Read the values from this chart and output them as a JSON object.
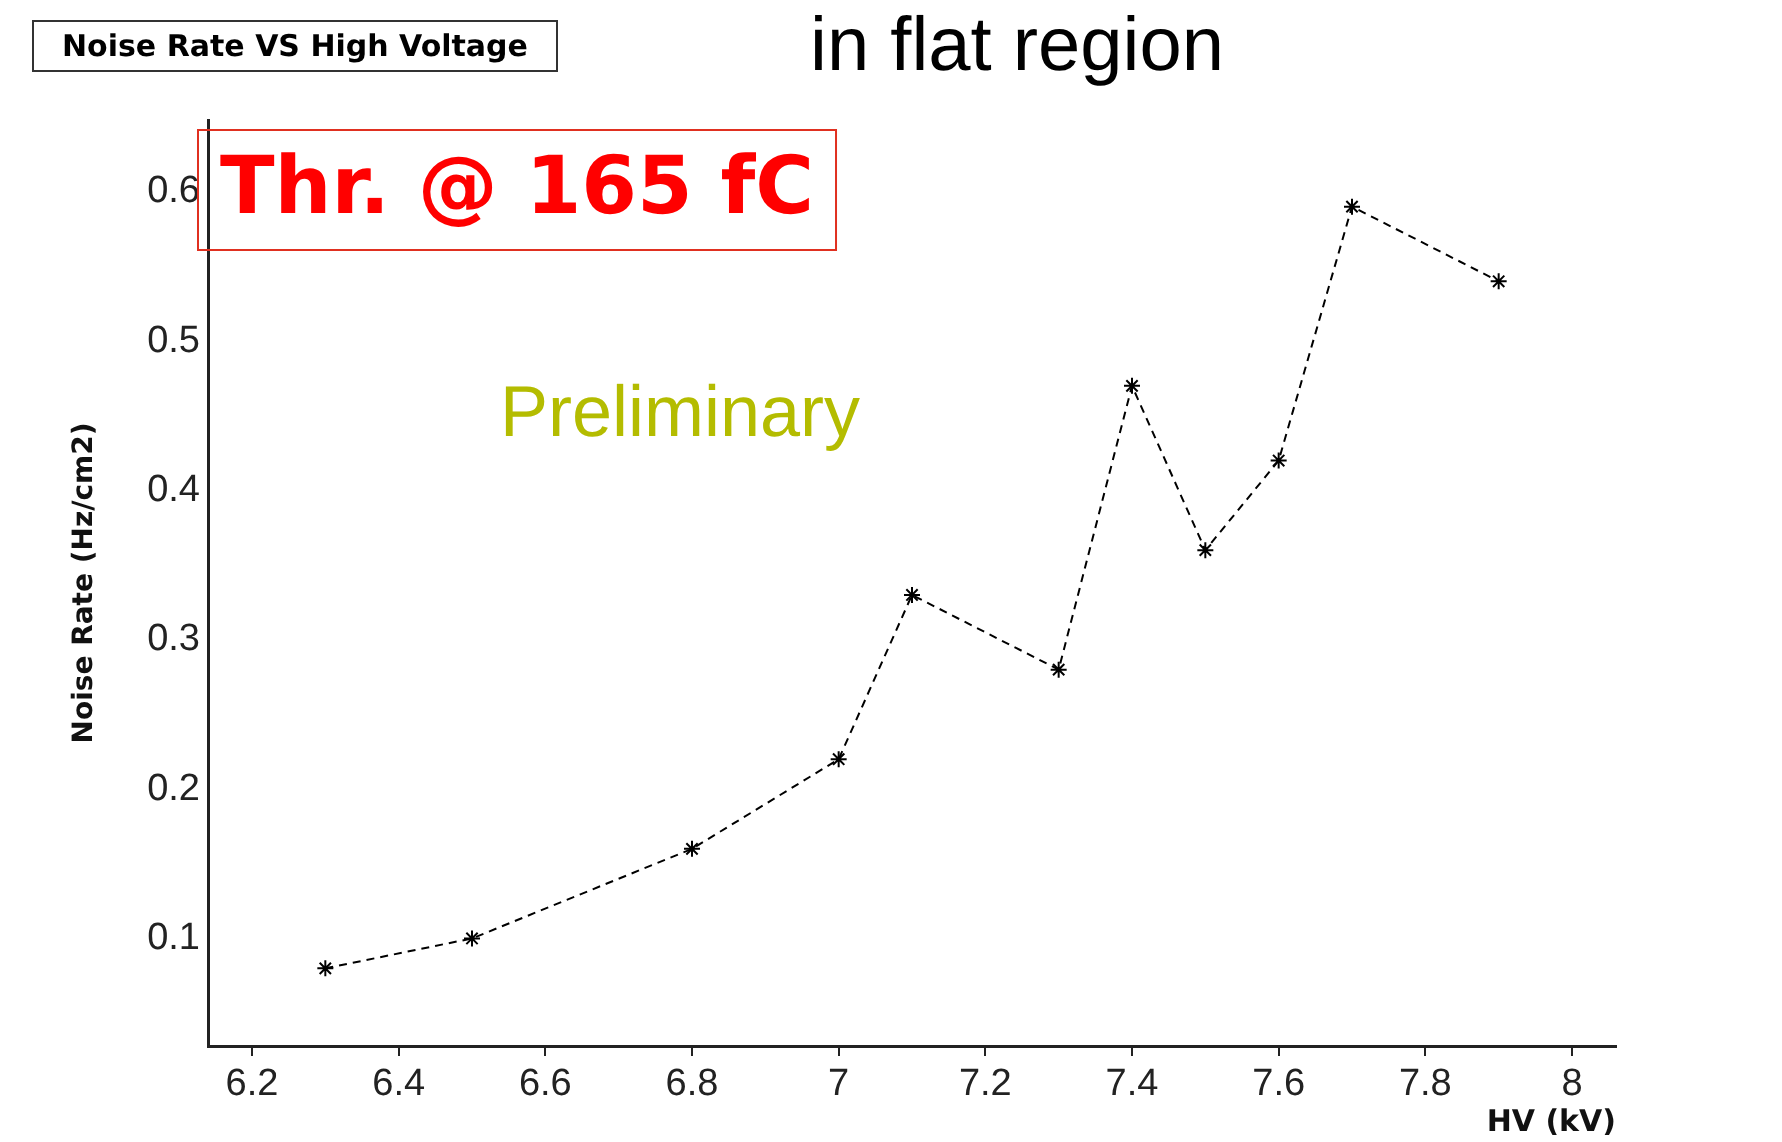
{
  "chart_data": {
    "type": "line",
    "title": "Noise Rate VS High Voltage",
    "subtitle": "in flat region",
    "xlabel": "HV (kV)",
    "ylabel": "Noise Rate (Hz/cm2)",
    "annotations": [
      "Thr. @ 165 fC",
      "Preliminary"
    ],
    "x": [
      6.3,
      6.5,
      6.8,
      7.0,
      7.1,
      7.3,
      7.4,
      7.5,
      7.6,
      7.7,
      7.9
    ],
    "series": [
      {
        "color": "#000000",
        "values": [
          0.08,
          0.1,
          0.16,
          0.22,
          0.33,
          0.28,
          0.47,
          0.36,
          0.42,
          0.59,
          0.54
        ]
      }
    ],
    "xlim": [
      6.14,
      8.06
    ],
    "xticks": [
      6.2,
      6.4,
      6.6,
      6.8,
      7,
      7.2,
      7.4,
      7.6,
      7.8,
      8
    ],
    "ylim": [
      0.028,
      0.648
    ],
    "yticks": [
      0.1,
      0.2,
      0.3,
      0.4,
      0.5,
      0.6
    ],
    "grid": false,
    "legend": false,
    "marker": "cross",
    "line_style": "dashed"
  }
}
